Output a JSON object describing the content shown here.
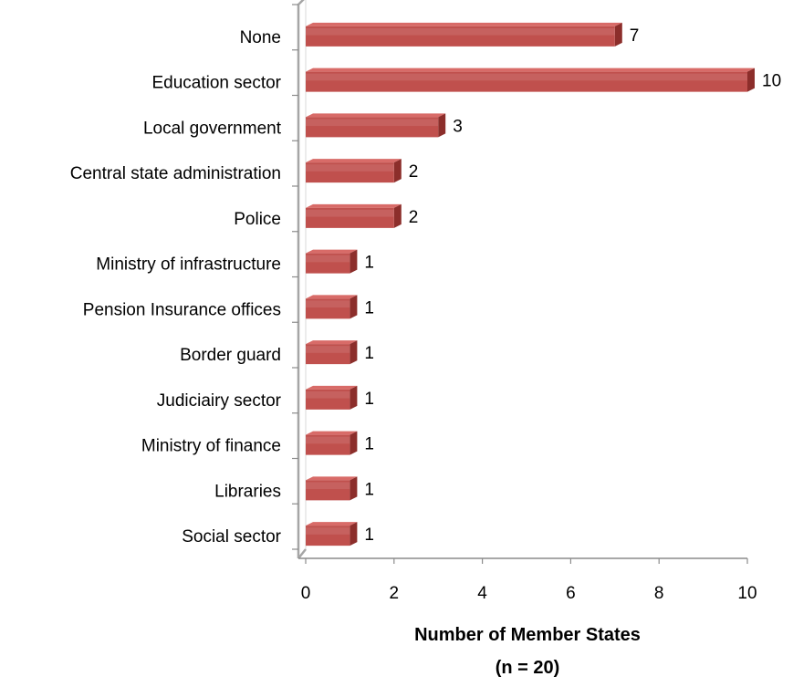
{
  "chart_data": {
    "type": "bar",
    "orientation": "horizontal",
    "style": "3d",
    "categories": [
      "None",
      "Education sector",
      "Local government",
      "Central state administration",
      "Police",
      "Ministry of infrastructure",
      "Pension Insurance offices",
      "Border guard",
      "Judiciairy sector",
      "Ministry of finance",
      "Libraries",
      "Social sector"
    ],
    "values": [
      7,
      10,
      3,
      2,
      2,
      1,
      1,
      1,
      1,
      1,
      1,
      1
    ],
    "xlim": [
      0,
      10
    ],
    "xticks": [
      "0",
      "2",
      "4",
      "6",
      "8",
      "10"
    ],
    "xlabel_lines": [
      "Number of Member States",
      "(n = 20)"
    ],
    "ylabel": "",
    "title": "",
    "grid": false,
    "legend": "none",
    "bar_color": "#c0504d",
    "bar_top_color": "#d86b68",
    "bar_side_color": "#8c2e2b"
  }
}
